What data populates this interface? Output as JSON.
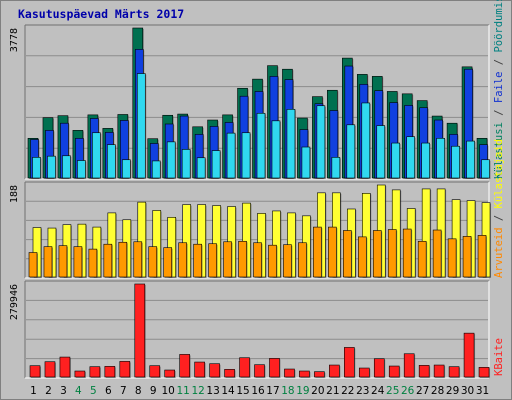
{
  "title": "Kasutuspäevad Märts 2017",
  "colors": {
    "background": "#c0c0c0",
    "grid": "#8c8c8c",
    "title": "#0000aa",
    "kulastusi": "#007050",
    "faile": "#1040e0",
    "poordumisi": "#30d8f0",
    "arvuteid": "#ff9900",
    "kulastajaid": "#ffff33",
    "kbaite": "#ff2020",
    "weekday_label": "#000000",
    "weekend_label": "#008040"
  },
  "right_labels": {
    "top": [
      {
        "text": "Külastusi",
        "color": "#008060"
      },
      {
        "text": " / ",
        "color": "#404040"
      },
      {
        "text": "Faile",
        "color": "#1030d0"
      },
      {
        "text": " / ",
        "color": "#404040"
      },
      {
        "text": "Pöördumisi",
        "color": "#008080"
      }
    ],
    "middle": [
      {
        "text": "Arvuteid",
        "color": "#ff8800"
      },
      {
        "text": " / ",
        "color": "#404040"
      },
      {
        "text": "Külastajaid",
        "color": "#ffff00"
      }
    ],
    "bottom": [
      {
        "text": "KBaite",
        "color": "#ff2020"
      }
    ]
  },
  "chart_data": [
    {
      "type": "bar",
      "name": "top",
      "ymax_label": "3778",
      "ylim": [
        0,
        3778
      ],
      "categories": [
        "1",
        "2",
        "3",
        "4",
        "5",
        "6",
        "7",
        "8",
        "9",
        "10",
        "11",
        "12",
        "13",
        "14",
        "15",
        "16",
        "17",
        "18",
        "19",
        "20",
        "21",
        "22",
        "23",
        "24",
        "25",
        "26",
        "27",
        "28",
        "29",
        "30",
        "31"
      ],
      "weekend_days": [
        "4",
        "5",
        "11",
        "12",
        "18",
        "19",
        "25",
        "26"
      ],
      "series": [
        {
          "name": "Külastusi",
          "values": [
            1000,
            1520,
            1570,
            1200,
            1590,
            1250,
            1600,
            3778,
            990,
            1580,
            1610,
            1290,
            1460,
            1590,
            2260,
            2490,
            2830,
            2740,
            1510,
            2050,
            2210,
            3020,
            2610,
            2560,
            2180,
            2120,
            1950,
            1560,
            1380,
            2800,
            1000
          ]
        },
        {
          "name": "Faile",
          "values": [
            970,
            1200,
            1380,
            1000,
            1500,
            1150,
            1450,
            3240,
            870,
            1360,
            1560,
            1100,
            1300,
            1400,
            2060,
            2180,
            2560,
            2480,
            1220,
            1870,
            1700,
            2820,
            2360,
            2200,
            1900,
            1830,
            1770,
            1460,
            1100,
            2740,
            840
          ]
        },
        {
          "name": "Pöördumisi",
          "values": [
            520,
            550,
            560,
            440,
            1140,
            840,
            460,
            2630,
            430,
            910,
            720,
            510,
            690,
            1130,
            1140,
            1630,
            1440,
            1730,
            780,
            1820,
            520,
            1340,
            1890,
            1320,
            880,
            1040,
            880,
            1000,
            800,
            930,
            460
          ]
        }
      ]
    },
    {
      "type": "bar",
      "name": "middle",
      "ymax_label": "188",
      "ylim": [
        0,
        188
      ],
      "categories": [
        "1",
        "2",
        "3",
        "4",
        "5",
        "6",
        "7",
        "8",
        "9",
        "10",
        "11",
        "12",
        "13",
        "14",
        "15",
        "16",
        "17",
        "18",
        "19",
        "20",
        "21",
        "22",
        "23",
        "24",
        "25",
        "26",
        "27",
        "28",
        "29",
        "30",
        "31"
      ],
      "series": [
        {
          "name": "Arvuteid",
          "values": [
            50,
            62,
            64,
            62,
            57,
            67,
            71,
            72,
            62,
            60,
            70,
            67,
            68,
            72,
            73,
            70,
            65,
            66,
            70,
            102,
            102,
            95,
            82,
            95,
            97,
            98,
            73,
            96,
            78,
            83,
            85
          ]
        },
        {
          "name": "Külastajaid",
          "values": [
            101,
            100,
            107,
            108,
            102,
            131,
            117,
            153,
            136,
            122,
            148,
            148,
            146,
            144,
            151,
            130,
            135,
            131,
            125,
            172,
            172,
            139,
            171,
            188,
            178,
            140,
            180,
            180,
            158,
            156,
            152
          ]
        }
      ]
    },
    {
      "type": "bar",
      "name": "bottom",
      "ymax_label": "279946",
      "ylim": [
        0,
        279946
      ],
      "categories": [
        "1",
        "2",
        "3",
        "4",
        "5",
        "6",
        "7",
        "8",
        "9",
        "10",
        "11",
        "12",
        "13",
        "14",
        "15",
        "16",
        "17",
        "18",
        "19",
        "20",
        "21",
        "22",
        "23",
        "24",
        "25",
        "26",
        "27",
        "28",
        "29",
        "30",
        "31"
      ],
      "series": [
        {
          "name": "KBaite",
          "values": [
            34000,
            46000,
            60000,
            18000,
            31000,
            32000,
            47000,
            279946,
            34000,
            21000,
            68000,
            45000,
            40000,
            23000,
            58000,
            37000,
            56000,
            24000,
            18000,
            16000,
            36000,
            89000,
            27000,
            55000,
            33000,
            70000,
            35000,
            36000,
            31000,
            132000,
            29000
          ]
        }
      ]
    }
  ]
}
